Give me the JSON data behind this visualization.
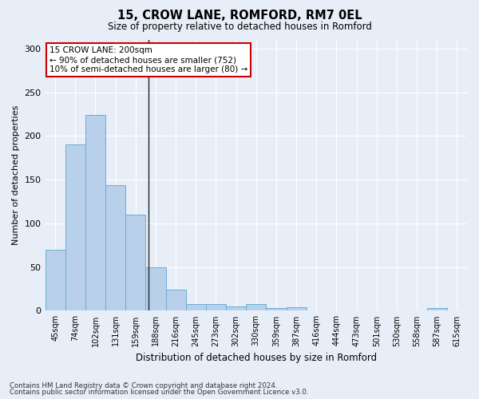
{
  "title": "15, CROW LANE, ROMFORD, RM7 0EL",
  "subtitle": "Size of property relative to detached houses in Romford",
  "xlabel": "Distribution of detached houses by size in Romford",
  "ylabel": "Number of detached properties",
  "categories": [
    "45sqm",
    "74sqm",
    "102sqm",
    "131sqm",
    "159sqm",
    "188sqm",
    "216sqm",
    "245sqm",
    "273sqm",
    "302sqm",
    "330sqm",
    "359sqm",
    "387sqm",
    "416sqm",
    "444sqm",
    "473sqm",
    "501sqm",
    "530sqm",
    "558sqm",
    "587sqm",
    "615sqm"
  ],
  "values": [
    70,
    190,
    224,
    144,
    110,
    50,
    24,
    8,
    8,
    5,
    8,
    3,
    4,
    0,
    0,
    0,
    0,
    0,
    0,
    3,
    0
  ],
  "bar_color": "#b8d0ea",
  "bar_edge_color": "#6aaed6",
  "background_color": "#e8eef8",
  "annotation_box_text": "15 CROW LANE: 200sqm\n← 90% of detached houses are smaller (752)\n10% of semi-detached houses are larger (80) →",
  "annotation_box_color": "#ffffff",
  "annotation_box_edge_color": "#cc0000",
  "ylim": [
    0,
    310
  ],
  "yticks": [
    0,
    50,
    100,
    150,
    200,
    250,
    300
  ],
  "footer_line1": "Contains HM Land Registry data © Crown copyright and database right 2024.",
  "footer_line2": "Contains public sector information licensed under the Open Government Licence v3.0.",
  "vertical_line_x": 4.65
}
